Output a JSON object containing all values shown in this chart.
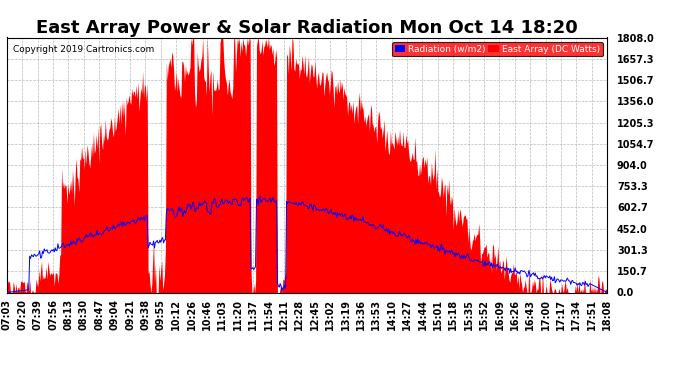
{
  "title": "East Array Power & Solar Radiation Mon Oct 14 18:20",
  "copyright": "Copyright 2019 Cartronics.com",
  "legend_labels": [
    "Radiation (w/m2)",
    "East Array (DC Watts)"
  ],
  "y_ticks": [
    0.0,
    150.7,
    301.3,
    452.0,
    602.7,
    753.3,
    904.0,
    1054.7,
    1205.3,
    1356.0,
    1506.7,
    1657.3,
    1808.0
  ],
  "x_tick_labels": [
    "07:03",
    "07:20",
    "07:39",
    "07:56",
    "08:13",
    "08:30",
    "08:47",
    "09:04",
    "09:21",
    "09:38",
    "09:55",
    "10:12",
    "10:26",
    "10:46",
    "11:03",
    "11:20",
    "11:37",
    "11:54",
    "12:11",
    "12:28",
    "12:45",
    "13:02",
    "13:19",
    "13:36",
    "13:53",
    "14:10",
    "14:27",
    "14:44",
    "15:01",
    "15:18",
    "15:35",
    "15:52",
    "16:09",
    "16:26",
    "16:43",
    "17:00",
    "17:17",
    "17:34",
    "17:51",
    "18:08"
  ],
  "background_color": "#ffffff",
  "grid_color": "#aaaaaa",
  "title_fontsize": 13,
  "axis_fontsize": 7,
  "y_max": 1808.0,
  "y_min": 0.0,
  "figsize": [
    6.9,
    3.75
  ],
  "dpi": 100
}
